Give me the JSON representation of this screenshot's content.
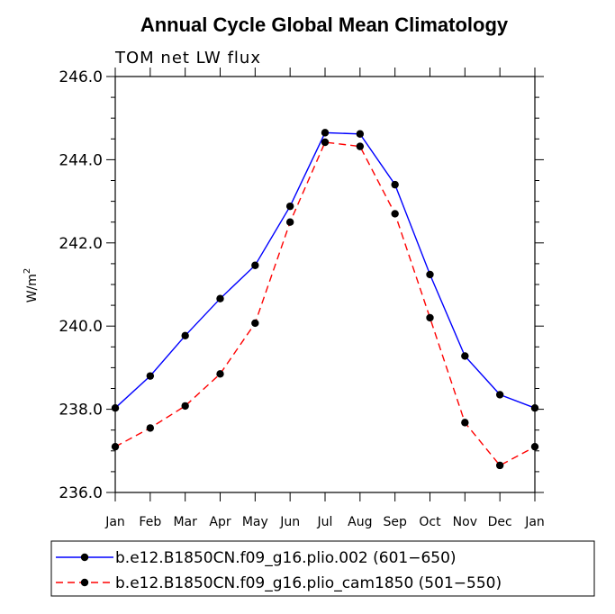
{
  "chart_data": {
    "type": "line",
    "title": "Annual Cycle Global Mean Climatology",
    "subtitle": "TOM net LW flux",
    "ylabel": "W/m",
    "ylabel_superscript": "2",
    "categories": [
      "Jan",
      "Feb",
      "Mar",
      "Apr",
      "May",
      "Jun",
      "Jul",
      "Aug",
      "Sep",
      "Oct",
      "Nov",
      "Dec",
      "Jan"
    ],
    "ylim": [
      236.0,
      246.0
    ],
    "yticks": [
      236.0,
      238.0,
      240.0,
      242.0,
      244.0,
      246.0
    ],
    "ytick_labels": [
      "236.0",
      "238.0",
      "240.0",
      "242.0",
      "244.0",
      "246.0"
    ],
    "legend_position": "bottom",
    "series": [
      {
        "name": "b.e12.B1850CN.f09_g16.plio.002 (601−650)",
        "color": "#0000ff",
        "dash": "solid",
        "values": [
          238.03,
          238.8,
          239.77,
          240.66,
          241.46,
          242.88,
          244.65,
          244.62,
          243.4,
          241.24,
          239.28,
          238.35,
          238.03
        ]
      },
      {
        "name": "b.e12.B1850CN.f09_g16.plio_cam1850 (501−550)",
        "color": "#ff0000",
        "dash": "dashed",
        "values": [
          237.1,
          237.55,
          238.08,
          238.85,
          240.07,
          242.5,
          244.42,
          244.32,
          242.7,
          240.2,
          237.68,
          236.65,
          237.1
        ]
      }
    ]
  }
}
